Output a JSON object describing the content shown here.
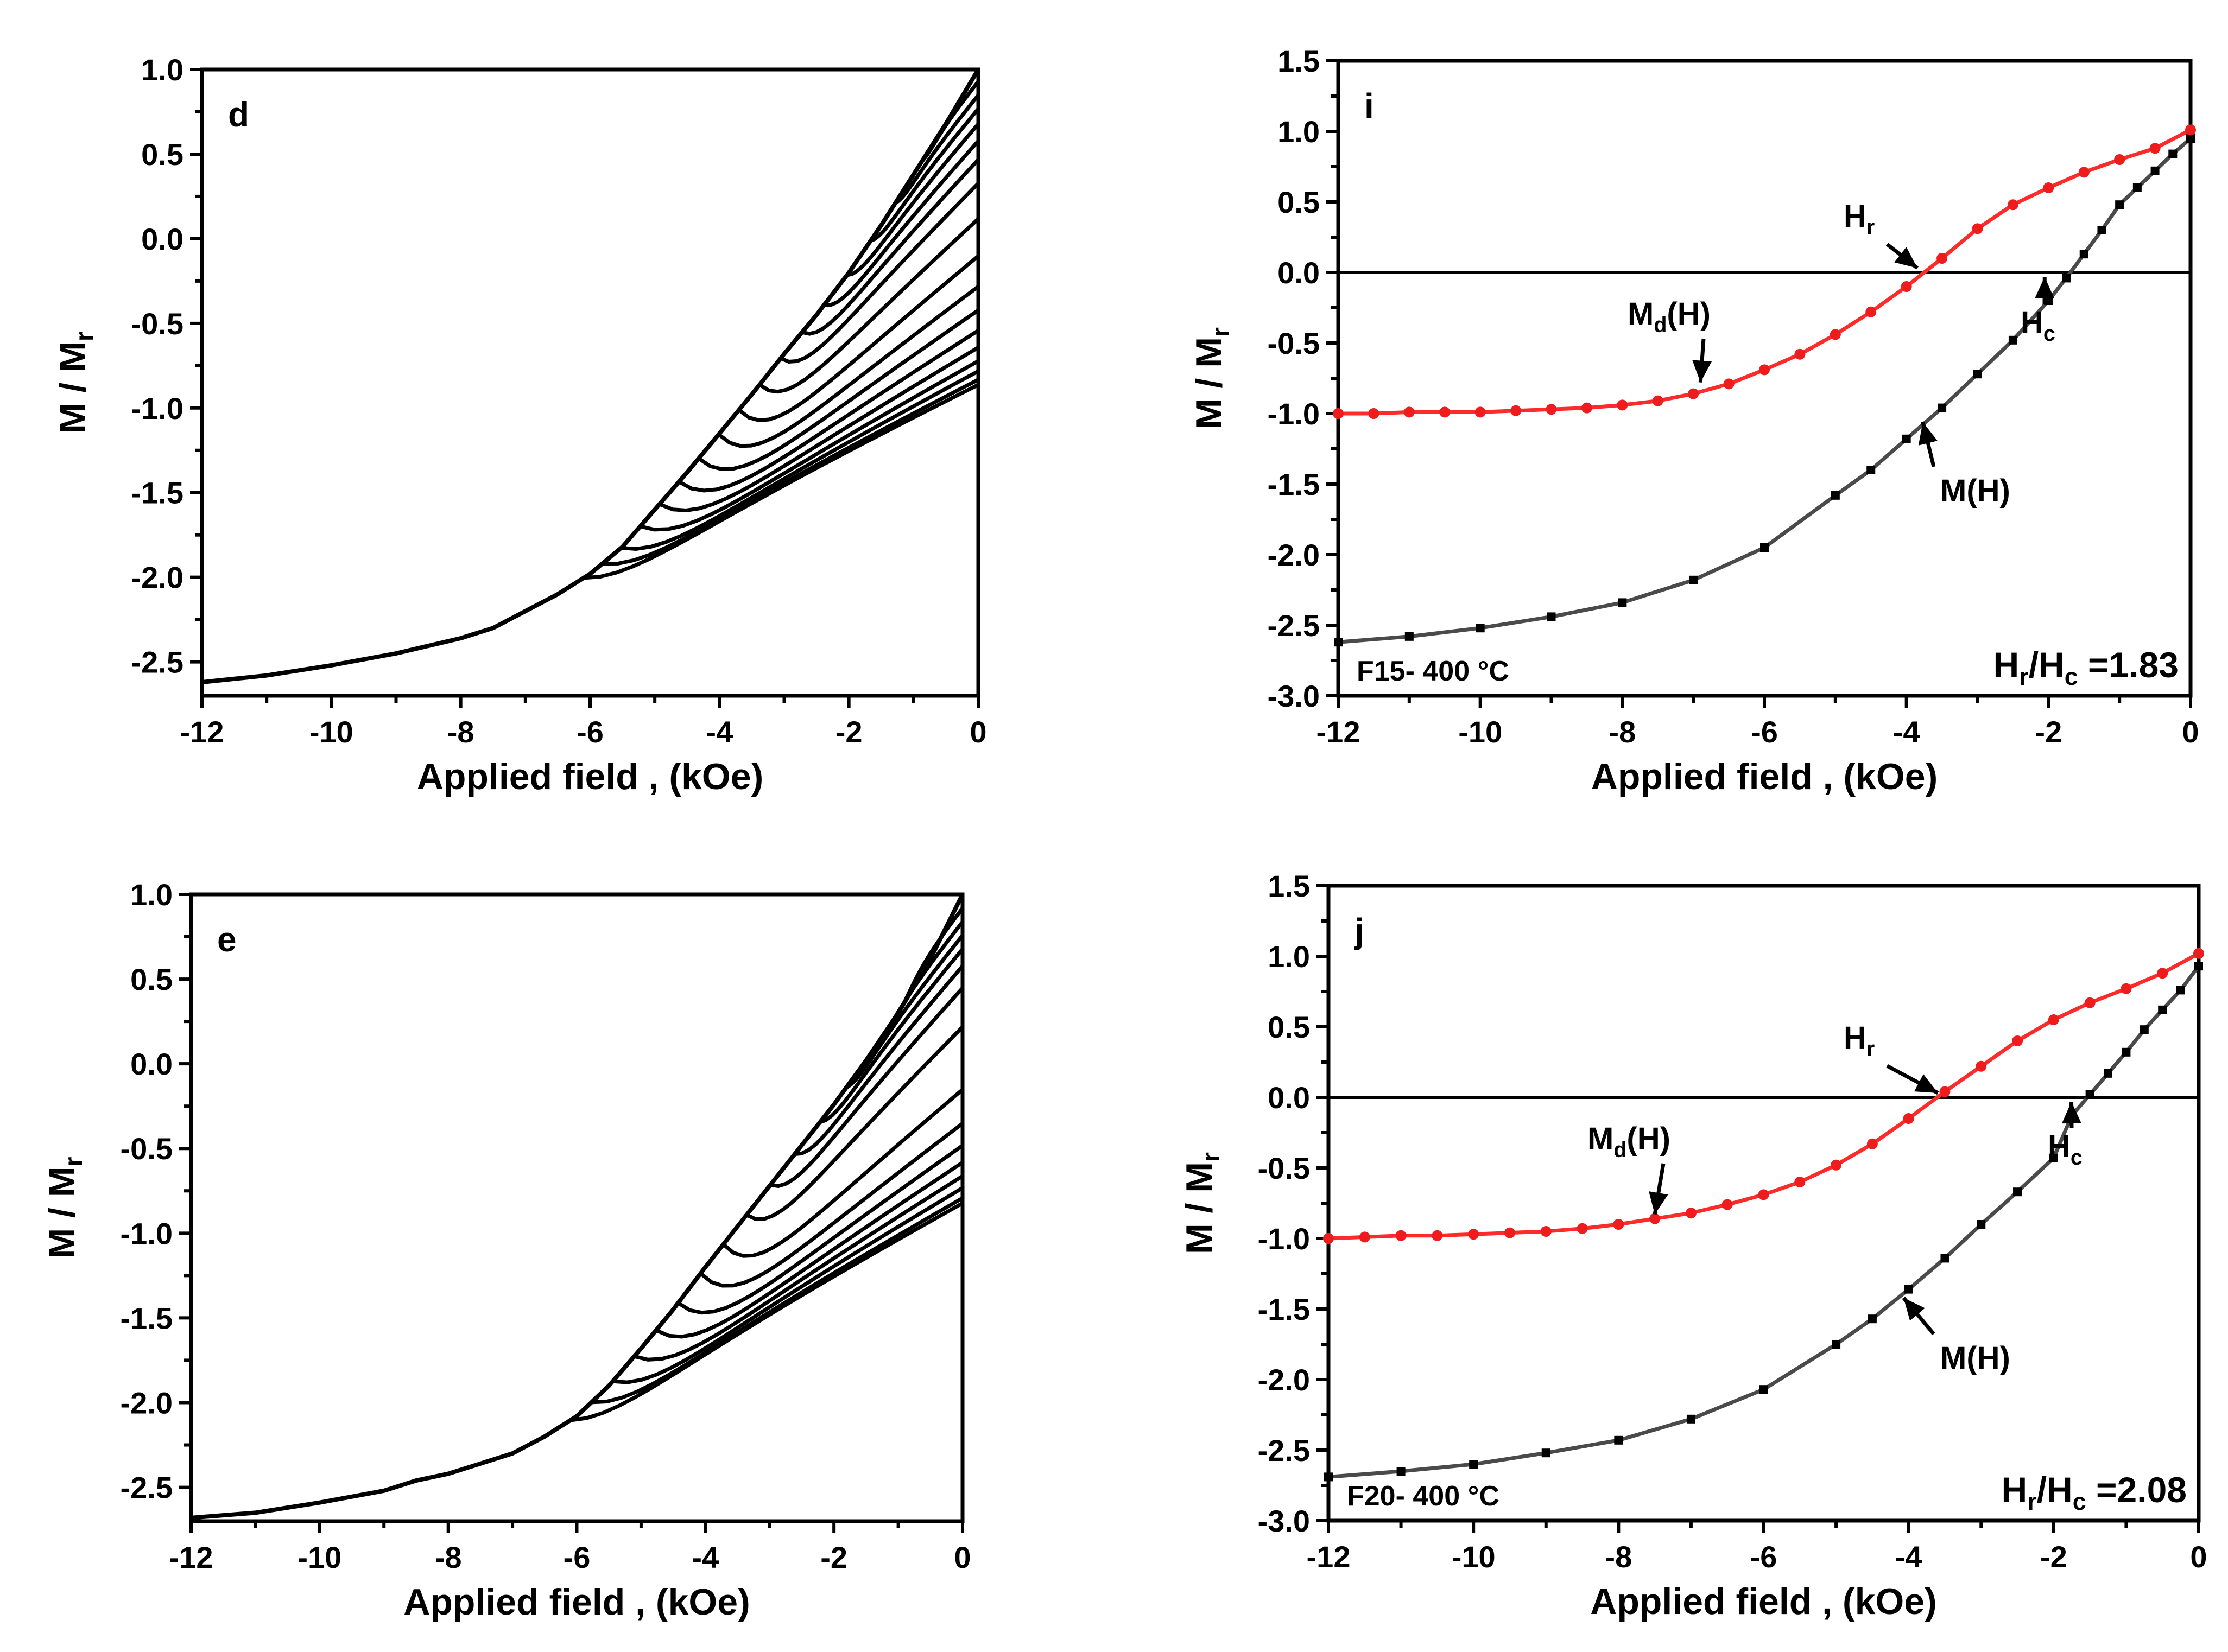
{
  "figure": {
    "ylabel_main": "M / M",
    "ylabel_sub": "r",
    "xlabel": "Applied field , (kOe)"
  },
  "colors": {
    "md": "#ff2a2a",
    "md_marker": "#ee1c1c",
    "m": "#4a4a4a",
    "m_marker": "#000000",
    "curves": "#000000"
  },
  "chart_data": [
    {
      "id": "d",
      "type": "line",
      "panel_label": "d",
      "xlabel": "Applied field , (kOe)",
      "ylabel": "M / Mr",
      "xlim": [
        -12,
        0
      ],
      "ylim": [
        -2.7,
        1.0
      ],
      "xticks": [
        -12,
        -10,
        -8,
        -6,
        -4,
        -2,
        0
      ],
      "yticks": [
        -2.5,
        -2.0,
        -1.5,
        -1.0,
        -0.5,
        0.0,
        0.5,
        1.0
      ],
      "ytick_labels": [
        "-2.5",
        "-2.0",
        "-1.5",
        "-1.0",
        "-0.5",
        "0.0",
        "0.5",
        "1.0"
      ],
      "envelope": {
        "x": [
          -12,
          -11,
          -10,
          -9,
          -8,
          -7.5,
          -7,
          -6.5,
          -6,
          -5.5,
          -5,
          -4.5,
          -4,
          -3.5,
          -3,
          -2.5,
          -2,
          -1.5,
          -1,
          -0.5,
          0
        ],
        "y": [
          -2.62,
          -2.58,
          -2.52,
          -2.45,
          -2.36,
          -2.3,
          -2.2,
          -2.1,
          -1.98,
          -1.82,
          -1.6,
          -1.38,
          -1.15,
          -0.92,
          -0.68,
          -0.45,
          -0.2,
          0.08,
          0.38,
          0.68,
          1.0
        ]
      },
      "forc_end_values": [
        1.0,
        0.93,
        0.85,
        0.77,
        0.68,
        0.58,
        0.47,
        0.33,
        0.12,
        -0.1,
        -0.28,
        -0.42,
        -0.54,
        -0.64,
        -0.72,
        -0.78,
        -0.83,
        -0.86
      ],
      "convergence": [
        -6.1,
        -2.02
      ]
    },
    {
      "id": "i",
      "type": "line",
      "panel_label": "i",
      "xlabel": "Applied field , (kOe)",
      "ylabel": "M / Mr",
      "xlim": [
        -12,
        0
      ],
      "ylim": [
        -3.0,
        1.5
      ],
      "xticks": [
        -12,
        -10,
        -8,
        -6,
        -4,
        -2,
        0
      ],
      "yticks": [
        -3.0,
        -2.5,
        -2.0,
        -1.5,
        -1.0,
        -0.5,
        0.0,
        0.5,
        1.0,
        1.5
      ],
      "ytick_labels": [
        "-3.0",
        "-2.5",
        "-2.0",
        "-1.5",
        "-1.0",
        "-0.5",
        "0.0",
        "0.5",
        "1.0",
        "1.5"
      ],
      "series": [
        {
          "name": "M(H)",
          "x": [
            -12,
            -11,
            -10,
            -9,
            -8,
            -7,
            -6,
            -5,
            -4.5,
            -4,
            -3.5,
            -3,
            -2.5,
            -2,
            -1.75,
            -1.5,
            -1.25,
            -1,
            -0.75,
            -0.5,
            -0.25,
            0
          ],
          "y": [
            -2.62,
            -2.58,
            -2.52,
            -2.44,
            -2.34,
            -2.18,
            -1.95,
            -1.58,
            -1.4,
            -1.18,
            -0.96,
            -0.72,
            -0.48,
            -0.2,
            -0.04,
            0.13,
            0.3,
            0.48,
            0.6,
            0.72,
            0.84,
            0.95
          ]
        },
        {
          "name": "Md(H)",
          "x": [
            -12,
            -11.5,
            -11,
            -10.5,
            -10,
            -9.5,
            -9,
            -8.5,
            -8,
            -7.5,
            -7,
            -6.5,
            -6,
            -5.5,
            -5,
            -4.5,
            -4,
            -3.5,
            -3,
            -2.5,
            -2,
            -1.5,
            -1,
            -0.5,
            0
          ],
          "y": [
            -1.0,
            -1.0,
            -0.99,
            -0.99,
            -0.99,
            -0.98,
            -0.97,
            -0.96,
            -0.94,
            -0.91,
            -0.86,
            -0.79,
            -0.69,
            -0.58,
            -0.44,
            -0.28,
            -0.1,
            0.1,
            0.31,
            0.48,
            0.6,
            0.71,
            0.8,
            0.88,
            1.01
          ]
        }
      ],
      "annotations": {
        "hr": "H",
        "hr_sub": "r",
        "hc": "H",
        "hc_sub": "c",
        "md": "M",
        "md_sub": "d",
        "md_suffix": "(H)",
        "m": "M(H)"
      },
      "sample_label": "F15- 400 °C",
      "ratio": {
        "a": "H",
        "a_sub": "r",
        "b": "/H",
        "b_sub": "c",
        "value": " =1.83"
      }
    },
    {
      "id": "e",
      "type": "line",
      "panel_label": "e",
      "xlabel": "Applied field , (kOe)",
      "ylabel": "M / Mr",
      "xlim": [
        -12,
        0
      ],
      "ylim": [
        -2.7,
        1.0
      ],
      "xticks": [
        -12,
        -10,
        -8,
        -6,
        -4,
        -2,
        0
      ],
      "yticks": [
        -2.5,
        -2.0,
        -1.5,
        -1.0,
        -0.5,
        0.0,
        0.5,
        1.0
      ],
      "ytick_labels": [
        "-2.5",
        "-2.0",
        "-1.5",
        "-1.0",
        "-0.5",
        "0.0",
        "0.5",
        "1.0"
      ],
      "envelope": {
        "x": [
          -12,
          -11,
          -10,
          -9,
          -8.5,
          -8,
          -7.5,
          -7,
          -6.5,
          -6,
          -5.5,
          -5,
          -4.5,
          -4,
          -3.5,
          -3,
          -2.5,
          -2,
          -1.5,
          -1,
          -0.5,
          0
        ],
        "y": [
          -2.68,
          -2.65,
          -2.59,
          -2.52,
          -2.46,
          -2.42,
          -2.36,
          -2.3,
          -2.2,
          -2.08,
          -1.9,
          -1.68,
          -1.45,
          -1.2,
          -0.96,
          -0.72,
          -0.48,
          -0.24,
          0.02,
          0.3,
          0.62,
          1.0
        ]
      },
      "forc_end_values": [
        1.0,
        0.92,
        0.84,
        0.76,
        0.68,
        0.58,
        0.45,
        0.22,
        -0.15,
        -0.35,
        -0.48,
        -0.58,
        -0.66,
        -0.73,
        -0.79,
        -0.82
      ],
      "convergence": [
        -6.1,
        -2.1
      ]
    },
    {
      "id": "j",
      "type": "line",
      "panel_label": "j",
      "xlabel": "Applied field , (kOe)",
      "ylabel": "M / Mr",
      "xlim": [
        -12,
        0
      ],
      "ylim": [
        -3.0,
        1.5
      ],
      "xticks": [
        -12,
        -10,
        -8,
        -6,
        -4,
        -2,
        0
      ],
      "yticks": [
        -3.0,
        -2.5,
        -2.0,
        -1.5,
        -1.0,
        -0.5,
        0.0,
        0.5,
        1.0,
        1.5
      ],
      "ytick_labels": [
        "-3.0",
        "-2.5",
        "-2.0",
        "-1.5",
        "-1.0",
        "-0.5",
        "0.0",
        "0.5",
        "1.0",
        "1.5"
      ],
      "series": [
        {
          "name": "M(H)",
          "x": [
            -12,
            -11,
            -10,
            -9,
            -8,
            -7,
            -6,
            -5,
            -4.5,
            -4,
            -3.5,
            -3,
            -2.5,
            -2,
            -1.75,
            -1.5,
            -1.25,
            -1,
            -0.75,
            -0.5,
            -0.25,
            0
          ],
          "y": [
            -2.69,
            -2.65,
            -2.6,
            -2.52,
            -2.43,
            -2.28,
            -2.07,
            -1.75,
            -1.57,
            -1.36,
            -1.14,
            -0.9,
            -0.67,
            -0.43,
            -0.13,
            0.02,
            0.17,
            0.32,
            0.48,
            0.62,
            0.76,
            0.93
          ]
        },
        {
          "name": "Md(H)",
          "x": [
            -12,
            -11.5,
            -11,
            -10.5,
            -10,
            -9.5,
            -9,
            -8.5,
            -8,
            -7.5,
            -7,
            -6.5,
            -6,
            -5.5,
            -5,
            -4.5,
            -4,
            -3.5,
            -3,
            -2.5,
            -2,
            -1.5,
            -1,
            -0.5,
            0
          ],
          "y": [
            -1.0,
            -0.99,
            -0.98,
            -0.98,
            -0.97,
            -0.96,
            -0.95,
            -0.93,
            -0.9,
            -0.86,
            -0.82,
            -0.76,
            -0.69,
            -0.6,
            -0.48,
            -0.33,
            -0.15,
            0.04,
            0.22,
            0.4,
            0.55,
            0.67,
            0.77,
            0.88,
            1.02
          ]
        }
      ],
      "annotations": {
        "hr": "H",
        "hr_sub": "r",
        "hc": "H",
        "hc_sub": "c",
        "md": "M",
        "md_sub": "d",
        "md_suffix": "(H)",
        "m": "M(H)"
      },
      "sample_label": "F20- 400 °C",
      "ratio": {
        "a": "H",
        "a_sub": "r",
        "b": "/H",
        "b_sub": "c",
        "value": " =2.08"
      }
    }
  ]
}
